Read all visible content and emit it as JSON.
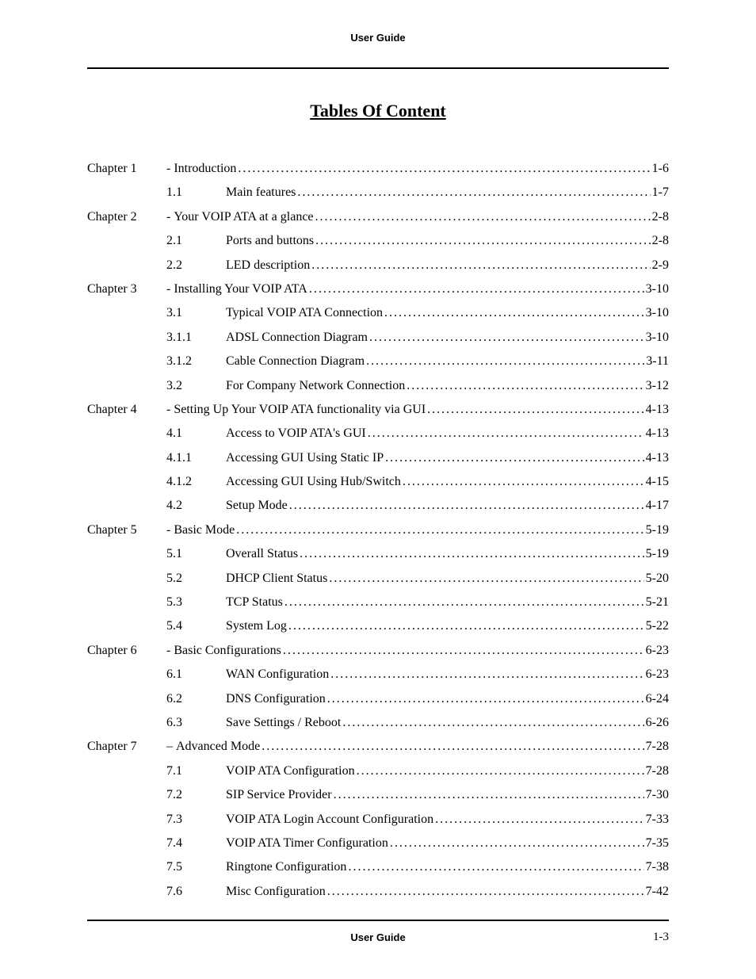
{
  "header": {
    "title": "User Guide"
  },
  "mainTitle": "Tables Of Content",
  "toc": [
    {
      "type": "chapter",
      "chapter": "Chapter 1",
      "dash": "- ",
      "title": "Introduction",
      "page": "1-6"
    },
    {
      "type": "section",
      "num": "1.1",
      "title": "Main features",
      "page": "1-7"
    },
    {
      "type": "chapter",
      "chapter": "Chapter 2",
      "dash": "- ",
      "title": "Your VOIP ATA at a glance",
      "page": "2-8"
    },
    {
      "type": "section",
      "num": "2.1",
      "title": "Ports and buttons",
      "page": "2-8"
    },
    {
      "type": "section",
      "num": "2.2",
      "title": "LED description",
      "page": "2-9"
    },
    {
      "type": "chapter",
      "chapter": "Chapter 3",
      "dash": "- ",
      "title": "Installing Your VOIP ATA",
      "page": "3-10"
    },
    {
      "type": "section",
      "num": "3.1",
      "title": "Typical VOIP ATA Connection",
      "page": "3-10"
    },
    {
      "type": "section",
      "num": "3.1.1",
      "title": "ADSL Connection Diagram",
      "page": "3-10"
    },
    {
      "type": "section",
      "num": "3.1.2",
      "title": "Cable Connection Diagram",
      "page": "3-11"
    },
    {
      "type": "section",
      "num": "3.2",
      "title": "For Company Network Connection",
      "page": "3-12"
    },
    {
      "type": "chapter",
      "chapter": "Chapter 4",
      "dash": "- ",
      "title": "Setting Up Your VOIP ATA functionality via GUI",
      "page": "4-13"
    },
    {
      "type": "section",
      "num": "4.1",
      "title": "Access to VOIP ATA's GUI",
      "page": "4-13"
    },
    {
      "type": "section",
      "num": "4.1.1",
      "title": "Accessing GUI Using Static IP",
      "page": "4-13"
    },
    {
      "type": "section",
      "num": "4.1.2",
      "title": "Accessing GUI Using Hub/Switch",
      "page": "4-15"
    },
    {
      "type": "section",
      "num": "4.2",
      "title": "Setup Mode",
      "page": "4-17"
    },
    {
      "type": "chapter",
      "chapter": "Chapter 5",
      "dash": "- ",
      "title": "Basic Mode",
      "page": "5-19"
    },
    {
      "type": "section",
      "num": "5.1",
      "title": "Overall Status",
      "page": "5-19"
    },
    {
      "type": "section",
      "num": "5.2",
      "title": "DHCP Client Status",
      "page": "5-20"
    },
    {
      "type": "section",
      "num": "5.3",
      "title": "TCP Status",
      "page": "5-21"
    },
    {
      "type": "section",
      "num": "5.4",
      "title": "System Log",
      "page": "5-22"
    },
    {
      "type": "chapter",
      "chapter": "Chapter 6",
      "dash": "- ",
      "title": "Basic Configurations",
      "page": "6-23"
    },
    {
      "type": "section",
      "num": "6.1",
      "title": "WAN Configuration",
      "page": "6-23"
    },
    {
      "type": "section",
      "num": "6.2",
      "title": "DNS Configuration",
      "page": "6-24"
    },
    {
      "type": "section",
      "num": "6.3",
      "title": "Save Settings / Reboot",
      "page": "6-26"
    },
    {
      "type": "chapter",
      "chapter": "Chapter 7",
      "dash": "– ",
      "title": "Advanced Mode",
      "page": "7-28"
    },
    {
      "type": "section",
      "num": "7.1",
      "title": "VOIP ATA Configuration",
      "page": "7-28"
    },
    {
      "type": "section",
      "num": "7.2",
      "title": "SIP Service Provider",
      "page": "7-30"
    },
    {
      "type": "section",
      "num": "7.3",
      "title": "VOIP ATA Login Account Configuration",
      "page": "7-33"
    },
    {
      "type": "section",
      "num": "7.4",
      "title": "VOIP ATA Timer Configuration",
      "page": "7-35"
    },
    {
      "type": "section",
      "num": "7.5",
      "title": "Ringtone Configuration",
      "page": "7-38"
    },
    {
      "type": "section",
      "num": "7.6",
      "title": "Misc Configuration",
      "page": "7-42"
    }
  ],
  "footer": {
    "center": "User Guide",
    "right": "1-3"
  }
}
